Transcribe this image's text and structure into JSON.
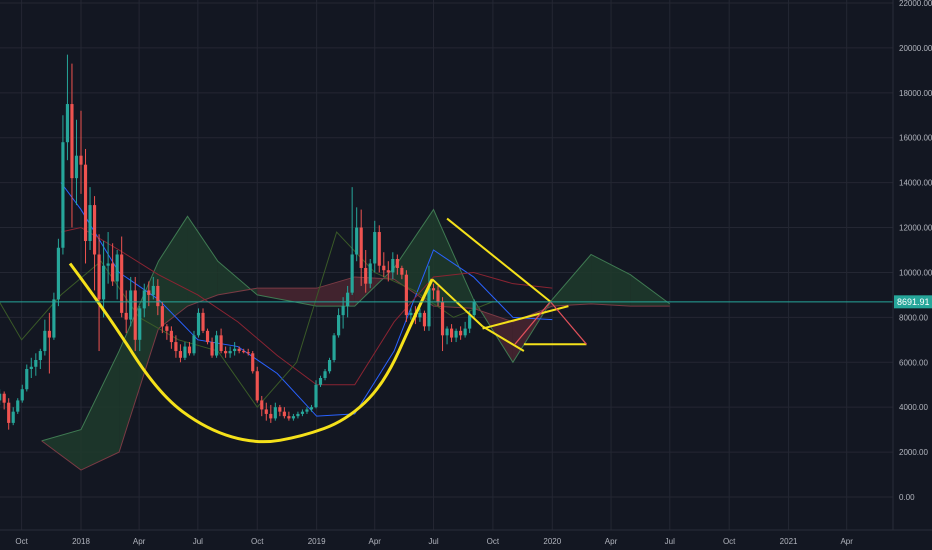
{
  "chart_data": {
    "type": "candlestick",
    "title": "",
    "xlabel": "",
    "ylabel": "",
    "y_scale": "linear",
    "ylim": [
      -1000,
      22000
    ],
    "y_ticks": [
      "0.00",
      "2000.00",
      "4000.00",
      "6000.00",
      "8000.00",
      "10000.00",
      "12000.00",
      "14000.00",
      "16000.00",
      "18000.00",
      "20000.00",
      "22000.00"
    ],
    "x_ticks": [
      {
        "label": "Oct",
        "date": "2017-10-01"
      },
      {
        "label": "2018",
        "date": "2018-01-01"
      },
      {
        "label": "Apr",
        "date": "2018-04-01"
      },
      {
        "label": "Jul",
        "date": "2018-07-01"
      },
      {
        "label": "Oct",
        "date": "2018-10-01"
      },
      {
        "label": "2019",
        "date": "2019-01-01"
      },
      {
        "label": "Apr",
        "date": "2019-04-01"
      },
      {
        "label": "Jul",
        "date": "2019-07-01"
      },
      {
        "label": "Oct",
        "date": "2019-10-01"
      },
      {
        "label": "2020",
        "date": "2020-01-01"
      },
      {
        "label": "Apr",
        "date": "2020-04-01"
      },
      {
        "label": "Jul",
        "date": "2020-07-01"
      },
      {
        "label": "Oct",
        "date": "2020-10-01"
      },
      {
        "label": "2021",
        "date": "2021-01-01"
      },
      {
        "label": "Apr",
        "date": "2021-04-01"
      }
    ],
    "last_price": "8691.91",
    "last_price_value": 8691.91,
    "grid": true,
    "colors": {
      "background": "#131722",
      "grid": "#242733",
      "up": "#26a69a",
      "down": "#ef5350",
      "drawing": "#f5e11a",
      "price_line": "#26a69a",
      "tenkan": "#2962ff",
      "kijun": "#8a2432",
      "cloud_bull": "#1f3b2c",
      "cloud_bear": "#4a2630",
      "chikou": "#3a5a28"
    },
    "series": [
      {
        "type": "ohlc",
        "interval_days": 7,
        "start_date": "2017-08-28",
        "values": [
          [
            4300,
            4800,
            4100,
            4600
          ],
          [
            4600,
            4700,
            3900,
            4200
          ],
          [
            4200,
            4400,
            3000,
            3300
          ],
          [
            3300,
            4000,
            3200,
            3800
          ],
          [
            3800,
            4400,
            3700,
            4300
          ],
          [
            4300,
            5000,
            4200,
            4800
          ],
          [
            4800,
            5900,
            4700,
            5700
          ],
          [
            5700,
            6200,
            5300,
            5800
          ],
          [
            5800,
            6400,
            5400,
            6100
          ],
          [
            6100,
            6600,
            5700,
            6500
          ],
          [
            6500,
            7900,
            6300,
            7400
          ],
          [
            7400,
            8200,
            5500,
            7100
          ],
          [
            7100,
            9100,
            7000,
            8800
          ],
          [
            8800,
            11500,
            8500,
            11100
          ],
          [
            11100,
            17000,
            10800,
            15800
          ],
          [
            15800,
            19700,
            15000,
            17500
          ],
          [
            17500,
            19300,
            12000,
            14200
          ],
          [
            14200,
            16800,
            13000,
            15200
          ],
          [
            15200,
            17200,
            13500,
            14800
          ],
          [
            14800,
            15500,
            10400,
            11400
          ],
          [
            11400,
            13800,
            11000,
            13000
          ],
          [
            13000,
            13400,
            9200,
            10800
          ],
          [
            10800,
            11700,
            6500,
            8800
          ],
          [
            8800,
            11400,
            8000,
            10300
          ],
          [
            10300,
            11800,
            9500,
            10400
          ],
          [
            10400,
            11300,
            9400,
            9600
          ],
          [
            9600,
            11000,
            8800,
            10800
          ],
          [
            10800,
            11600,
            8000,
            8200
          ],
          [
            8200,
            9200,
            7300,
            7900
          ],
          [
            7900,
            9800,
            7600,
            9200
          ],
          [
            9200,
            9800,
            6500,
            7000
          ],
          [
            7000,
            8500,
            6500,
            8400
          ],
          [
            8400,
            9500,
            8000,
            9200
          ],
          [
            9200,
            9600,
            8500,
            9000
          ],
          [
            9000,
            9800,
            8800,
            9400
          ],
          [
            9400,
            9700,
            8100,
            8500
          ],
          [
            8500,
            8700,
            7300,
            7600
          ],
          [
            7600,
            7700,
            7000,
            7400
          ],
          [
            7400,
            7600,
            6600,
            6900
          ],
          [
            6900,
            7200,
            6200,
            6500
          ],
          [
            6500,
            6800,
            6000,
            6200
          ],
          [
            6200,
            6900,
            6100,
            6700
          ],
          [
            6700,
            6900,
            6300,
            6400
          ],
          [
            6400,
            7400,
            6300,
            7200
          ],
          [
            7200,
            8400,
            7100,
            8200
          ],
          [
            8200,
            8400,
            7300,
            7400
          ],
          [
            7400,
            7500,
            6800,
            6900
          ],
          [
            6900,
            7100,
            6200,
            6300
          ],
          [
            6300,
            7400,
            6200,
            7200
          ],
          [
            7200,
            7500,
            6400,
            6500
          ],
          [
            6500,
            6700,
            6200,
            6400
          ],
          [
            6400,
            6700,
            6200,
            6500
          ],
          [
            6500,
            6900,
            6300,
            6600
          ],
          [
            6600,
            6700,
            6400,
            6500
          ],
          [
            6500,
            6600,
            6400,
            6450
          ],
          [
            6450,
            6600,
            6300,
            6400
          ],
          [
            6400,
            6500,
            5500,
            5600
          ],
          [
            5600,
            5800,
            4200,
            4300
          ],
          [
            4300,
            4500,
            3600,
            3900
          ],
          [
            3900,
            4200,
            3400,
            3700
          ],
          [
            3700,
            4100,
            3300,
            3500
          ],
          [
            3500,
            4200,
            3400,
            4000
          ],
          [
            4000,
            4100,
            3600,
            3800
          ],
          [
            3800,
            4000,
            3500,
            3600
          ],
          [
            3600,
            3800,
            3400,
            3500
          ],
          [
            3500,
            3700,
            3400,
            3600
          ],
          [
            3600,
            3800,
            3500,
            3700
          ],
          [
            3700,
            3900,
            3600,
            3800
          ],
          [
            3800,
            4000,
            3700,
            3900
          ],
          [
            3900,
            4100,
            3800,
            4000
          ],
          [
            4000,
            5200,
            3950,
            5000
          ],
          [
            5000,
            5400,
            4900,
            5300
          ],
          [
            5300,
            5700,
            5200,
            5600
          ],
          [
            5600,
            6200,
            5500,
            6100
          ],
          [
            6100,
            7300,
            6000,
            7200
          ],
          [
            7200,
            8400,
            7100,
            8100
          ],
          [
            8100,
            8900,
            7500,
            8500
          ],
          [
            8500,
            9400,
            8000,
            9100
          ],
          [
            9100,
            13800,
            9000,
            10800
          ],
          [
            10800,
            12900,
            10500,
            12000
          ],
          [
            12000,
            12800,
            9400,
            10200
          ],
          [
            10200,
            11000,
            9100,
            9500
          ],
          [
            9500,
            10600,
            9300,
            10400
          ],
          [
            10400,
            12300,
            10000,
            11800
          ],
          [
            11800,
            12100,
            10000,
            10300
          ],
          [
            10300,
            10900,
            9800,
            10100
          ],
          [
            10100,
            10500,
            9600,
            10000
          ],
          [
            10000,
            10900,
            9700,
            10600
          ],
          [
            10600,
            10800,
            9900,
            10200
          ],
          [
            10200,
            10300,
            9700,
            9900
          ],
          [
            9900,
            10100,
            7800,
            8100
          ],
          [
            8100,
            8400,
            7900,
            8200
          ],
          [
            8200,
            8500,
            7700,
            8000
          ],
          [
            8000,
            8400,
            7800,
            8200
          ],
          [
            8200,
            8300,
            7400,
            7600
          ],
          [
            7600,
            10300,
            7400,
            9300
          ],
          [
            9300,
            9500,
            8800,
            9200
          ],
          [
            9200,
            9400,
            8500,
            8700
          ],
          [
            8700,
            8900,
            6500,
            7200
          ],
          [
            7200,
            7600,
            6800,
            7500
          ],
          [
            7500,
            7700,
            6900,
            7100
          ],
          [
            7100,
            7500,
            6900,
            7400
          ],
          [
            7400,
            7600,
            7000,
            7200
          ],
          [
            7200,
            7800,
            7100,
            7500
          ],
          [
            7500,
            8300,
            7300,
            8100
          ],
          [
            8100,
            8800,
            8000,
            8692
          ]
        ]
      },
      {
        "name": "",
        "type": "tenkan",
        "x": [
          "2017-12-01",
          "2018-01-01",
          "2018-03-01",
          "2018-05-01",
          "2018-07-01",
          "2018-09-01",
          "2018-11-01",
          "2019-01-01",
          "2019-03-01",
          "2019-05-01",
          "2019-07-01",
          "2019-09-01",
          "2019-11-01",
          "2020-01-01"
        ],
        "y": [
          14000,
          12800,
          10000,
          8800,
          7000,
          6700,
          5500,
          3600,
          3700,
          6500,
          11000,
          9800,
          8000,
          7900
        ]
      },
      {
        "name": "",
        "type": "kijun",
        "x": [
          "2017-12-01",
          "2018-01-01",
          "2018-03-01",
          "2018-05-01",
          "2018-07-01",
          "2018-09-01",
          "2018-11-01",
          "2019-01-01",
          "2019-03-01",
          "2019-05-01",
          "2019-07-01",
          "2019-09-01",
          "2019-11-01",
          "2020-01-01"
        ],
        "y": [
          11800,
          12000,
          11000,
          9900,
          9000,
          7800,
          6300,
          5000,
          5000,
          7800,
          9800,
          10000,
          9500,
          9300
        ]
      },
      {
        "name": "",
        "type": "cloud",
        "x": [
          "2017-11-01",
          "2018-01-01",
          "2018-03-01",
          "2018-05-01",
          "2018-06-15",
          "2018-08-01",
          "2018-10-01",
          "2019-01-01",
          "2019-03-01",
          "2019-05-01",
          "2019-07-01",
          "2019-09-01",
          "2019-11-01",
          "2020-01-01",
          "2020-03-01",
          "2020-05-01",
          "2020-07-01"
        ],
        "span_a": [
          2500,
          3000,
          6500,
          10500,
          12500,
          10500,
          9000,
          8500,
          8500,
          10200,
          12800,
          8800,
          6000,
          8800,
          10800,
          9900,
          8600
        ],
        "span_b": [
          2500,
          1200,
          2000,
          7500,
          8500,
          9000,
          9300,
          9300,
          9800,
          9700,
          8500,
          8400,
          7800,
          8500,
          8600,
          8500,
          8500
        ]
      },
      {
        "name": "",
        "type": "chikou",
        "x": [
          "2017-08-01",
          "2017-10-01",
          "2017-12-01",
          "2018-02-01",
          "2018-04-01",
          "2018-06-01",
          "2018-08-01",
          "2018-10-01",
          "2018-12-01",
          "2019-02-01",
          "2019-04-01",
          "2019-06-01",
          "2019-08-01",
          "2019-10-01"
        ],
        "y": [
          10000,
          7000,
          9000,
          10500,
          8000,
          7000,
          6500,
          4000,
          6000,
          11800,
          10000,
          9200,
          8000,
          8700
        ]
      }
    ],
    "drawings": [
      {
        "type": "arc",
        "points": [
          [
            "2017-12-15",
            10400
          ],
          [
            "2018-02-10",
            8200
          ],
          [
            "2018-05-01",
            4600
          ],
          [
            "2018-07-15",
            3000
          ],
          [
            "2018-10-01",
            2350
          ],
          [
            "2018-12-10",
            2700
          ],
          [
            "2019-02-15",
            3400
          ],
          [
            "2019-04-15",
            5000
          ],
          [
            "2019-06-01",
            8000
          ],
          [
            "2019-06-29",
            9700
          ]
        ]
      },
      {
        "type": "segment",
        "points": [
          [
            "2019-06-29",
            9700
          ],
          [
            "2019-09-15",
            7600
          ]
        ]
      },
      {
        "type": "segment",
        "points": [
          [
            "2019-09-15",
            7600
          ],
          [
            "2019-11-18",
            6500
          ]
        ]
      },
      {
        "type": "segment",
        "points": [
          [
            "2019-07-22",
            12400
          ],
          [
            "2019-12-29",
            8700
          ]
        ]
      },
      {
        "type": "segment",
        "points": [
          [
            "2019-09-15",
            7500
          ],
          [
            "2020-01-26",
            8500
          ]
        ]
      },
      {
        "type": "segment",
        "points": [
          [
            "2019-11-18",
            6800
          ],
          [
            "2020-02-23",
            6800
          ]
        ]
      },
      {
        "type": "segment_red",
        "points": [
          [
            "2019-12-29",
            8700
          ],
          [
            "2020-02-23",
            6800
          ]
        ]
      },
      {
        "type": "segment_red",
        "points": [
          [
            "2019-11-04",
            6800
          ],
          [
            "2019-12-29",
            8700
          ]
        ]
      }
    ]
  }
}
